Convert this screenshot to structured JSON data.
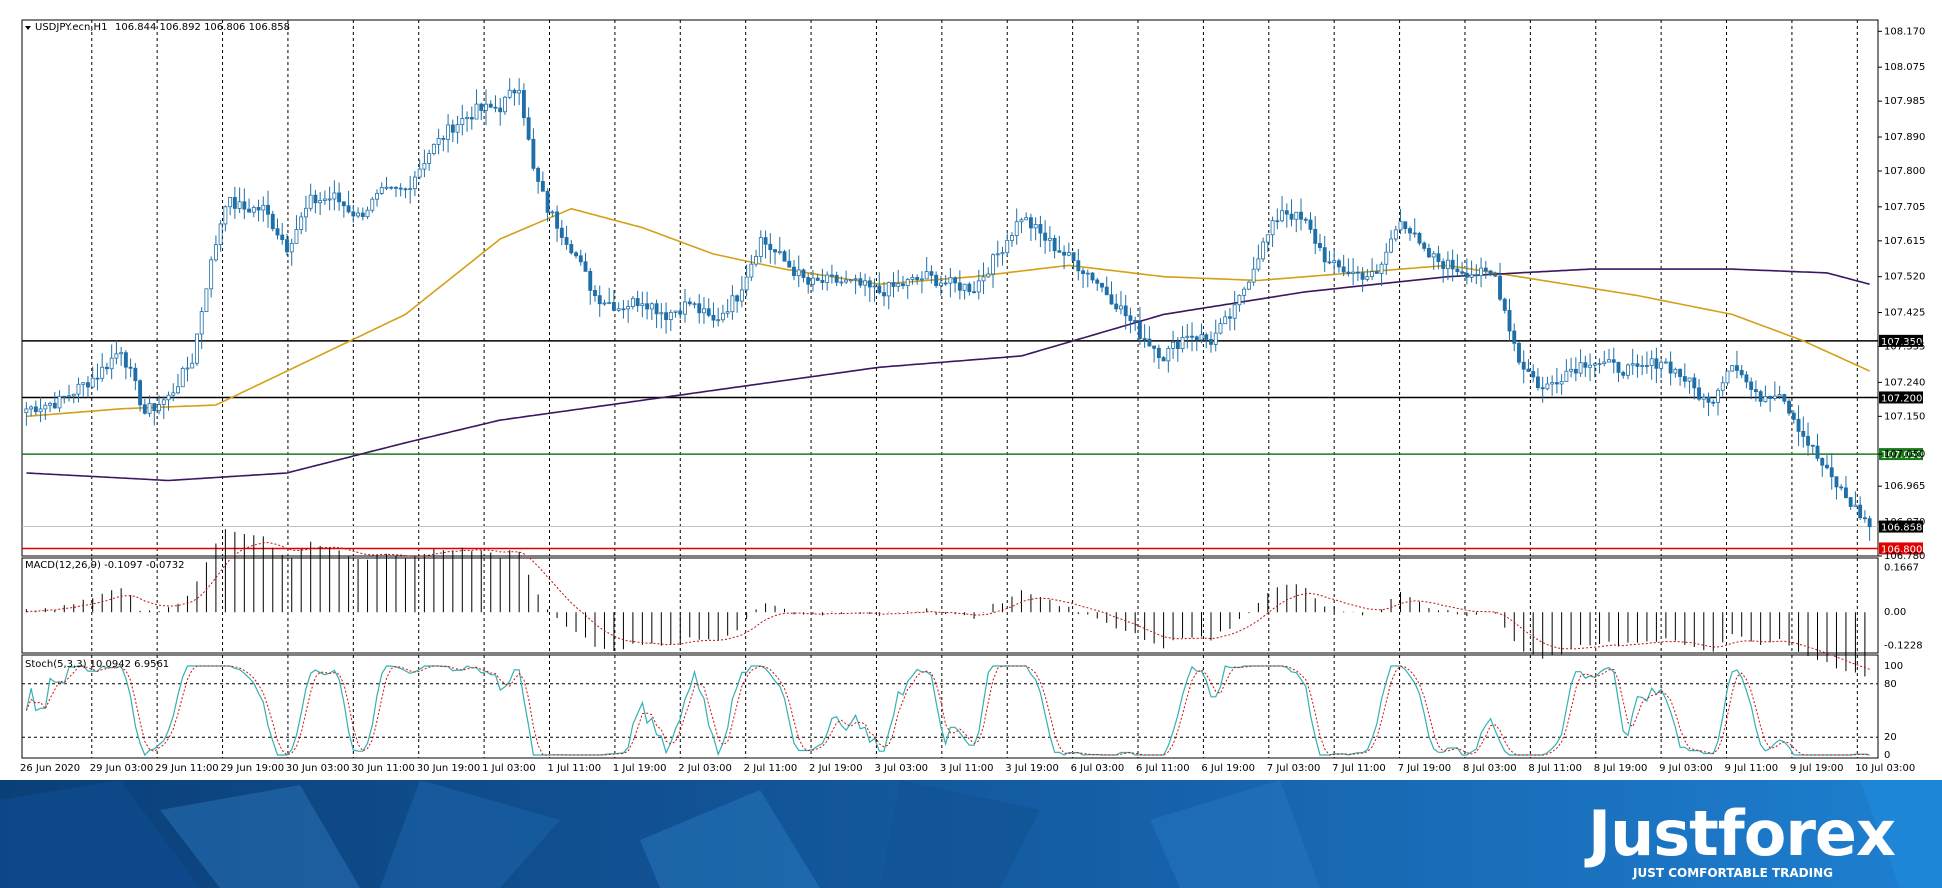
{
  "header": {
    "symbol": "USDJPY.ecn,H1",
    "ohlc": "106.844 106.892 106.806 106.858",
    "macd_label": "MACD(12,26,9) -0.1097 -0.0732",
    "stoch_label": "Stoch(5,3,3) 10.0942 6.9561"
  },
  "brand": {
    "name": "Justforex",
    "tagline": "JUST COMFORTABLE TRADING"
  },
  "colors": {
    "bull": "#ffffff",
    "bear": "#1f6fa8",
    "candle_outline": "#1f6fa8",
    "ma_fast": "#d4a017",
    "ma_slow": "#3c1761",
    "support_black": "#000000",
    "support_green": "#1b7a1b",
    "support_red": "#e00000",
    "stoch_main": "#35b0b0",
    "stoch_signal": "#d01010",
    "macd_signal": "#c01010",
    "banner_dark": "#0b3f78",
    "banner_light": "#1e7fd0"
  },
  "chart_data": {
    "type": "candlestick",
    "symbol": "USDJPY.ecn",
    "timeframe": "H1",
    "price_axis": {
      "min": 106.78,
      "max": 108.2,
      "ticks": [
        "108.170",
        "108.075",
        "107.985",
        "107.890",
        "107.800",
        "107.705",
        "107.615",
        "107.520",
        "107.425",
        "107.335",
        "107.240",
        "107.150",
        "107.050",
        "106.965",
        "106.870",
        "106.780"
      ]
    },
    "levels": [
      {
        "value": 107.35,
        "label": "107.350",
        "color": "#000000"
      },
      {
        "value": 107.2,
        "label": "107.200",
        "color": "#000000"
      },
      {
        "value": 107.05,
        "label": "107.050",
        "color": "#1b7a1b"
      },
      {
        "value": 106.8,
        "label": "106.800",
        "color": "#e00000"
      }
    ],
    "current_price": {
      "value": 106.858,
      "label": "106.858"
    },
    "time_labels": [
      "26 Jun 2020",
      "29 Jun 03:00",
      "29 Jun 11:00",
      "29 Jun 19:00",
      "30 Jun 03:00",
      "30 Jun 11:00",
      "30 Jun 19:00",
      "1 Jul 03:00",
      "1 Jul 11:00",
      "1 Jul 19:00",
      "2 Jul 03:00",
      "2 Jul 11:00",
      "2 Jul 19:00",
      "3 Jul 03:00",
      "3 Jul 11:00",
      "3 Jul 19:00",
      "6 Jul 03:00",
      "6 Jul 11:00",
      "6 Jul 19:00",
      "7 Jul 03:00",
      "7 Jul 11:00",
      "7 Jul 19:00",
      "8 Jul 03:00",
      "8 Jul 11:00",
      "8 Jul 19:00",
      "9 Jul 03:00",
      "9 Jul 11:00",
      "9 Jul 19:00",
      "10 Jul 03:00"
    ],
    "close_path": [
      [
        0,
        107.17
      ],
      [
        7,
        107.19
      ],
      [
        15,
        107.26
      ],
      [
        20,
        107.33
      ],
      [
        25,
        107.16
      ],
      [
        30,
        107.2
      ],
      [
        35,
        107.3
      ],
      [
        38,
        107.5
      ],
      [
        42,
        107.72
      ],
      [
        46,
        107.7
      ],
      [
        50,
        107.7
      ],
      [
        55,
        107.6
      ],
      [
        60,
        107.72
      ],
      [
        65,
        107.73
      ],
      [
        70,
        107.68
      ],
      [
        75,
        107.74
      ],
      [
        80,
        107.75
      ],
      [
        85,
        107.85
      ],
      [
        90,
        107.92
      ],
      [
        95,
        107.96
      ],
      [
        100,
        107.97
      ],
      [
        104,
        108.03
      ],
      [
        107,
        107.8
      ],
      [
        110,
        107.7
      ],
      [
        115,
        107.6
      ],
      [
        120,
        107.47
      ],
      [
        125,
        107.44
      ],
      [
        130,
        107.46
      ],
      [
        135,
        107.42
      ],
      [
        140,
        107.45
      ],
      [
        145,
        107.4
      ],
      [
        150,
        107.47
      ],
      [
        155,
        107.62
      ],
      [
        160,
        107.56
      ],
      [
        165,
        107.5
      ],
      [
        170,
        107.51
      ],
      [
        175,
        107.5
      ],
      [
        180,
        107.48
      ],
      [
        185,
        107.5
      ],
      [
        190,
        107.52
      ],
      [
        195,
        107.5
      ],
      [
        200,
        107.49
      ],
      [
        205,
        107.58
      ],
      [
        210,
        107.68
      ],
      [
        215,
        107.62
      ],
      [
        220,
        107.57
      ],
      [
        225,
        107.52
      ],
      [
        230,
        107.45
      ],
      [
        235,
        107.37
      ],
      [
        240,
        107.31
      ],
      [
        245,
        107.37
      ],
      [
        250,
        107.35
      ],
      [
        255,
        107.43
      ],
      [
        260,
        107.58
      ],
      [
        265,
        107.7
      ],
      [
        270,
        107.66
      ],
      [
        275,
        107.55
      ],
      [
        280,
        107.53
      ],
      [
        285,
        107.52
      ],
      [
        290,
        107.68
      ],
      [
        295,
        107.58
      ],
      [
        300,
        107.55
      ],
      [
        305,
        107.53
      ],
      [
        310,
        107.52
      ],
      [
        315,
        107.3
      ],
      [
        320,
        107.22
      ],
      [
        325,
        107.27
      ],
      [
        330,
        107.3
      ],
      [
        335,
        107.28
      ],
      [
        340,
        107.27
      ],
      [
        345,
        107.3
      ],
      [
        350,
        107.25
      ],
      [
        355,
        107.18
      ],
      [
        360,
        107.3
      ],
      [
        365,
        107.2
      ],
      [
        370,
        107.22
      ],
      [
        375,
        107.1
      ],
      [
        380,
        107.0
      ],
      [
        385,
        106.92
      ],
      [
        389,
        106.86
      ]
    ],
    "series": [
      {
        "name": "ma_fast",
        "color": "#d4a017",
        "points": [
          [
            0,
            107.15
          ],
          [
            20,
            107.17
          ],
          [
            40,
            107.18
          ],
          [
            60,
            107.3
          ],
          [
            80,
            107.42
          ],
          [
            100,
            107.62
          ],
          [
            115,
            107.7
          ],
          [
            130,
            107.65
          ],
          [
            145,
            107.58
          ],
          [
            160,
            107.54
          ],
          [
            180,
            107.5
          ],
          [
            200,
            107.52
          ],
          [
            220,
            107.55
          ],
          [
            240,
            107.52
          ],
          [
            260,
            107.51
          ],
          [
            280,
            107.53
          ],
          [
            300,
            107.55
          ],
          [
            320,
            107.51
          ],
          [
            340,
            107.47
          ],
          [
            360,
            107.42
          ],
          [
            375,
            107.35
          ],
          [
            389,
            107.27
          ]
        ]
      },
      {
        "name": "ma_slow",
        "color": "#3c1761",
        "points": [
          [
            0,
            107.0
          ],
          [
            30,
            106.98
          ],
          [
            55,
            107.0
          ],
          [
            80,
            107.08
          ],
          [
            100,
            107.14
          ],
          [
            140,
            107.21
          ],
          [
            180,
            107.28
          ],
          [
            210,
            107.31
          ],
          [
            240,
            107.42
          ],
          [
            270,
            107.48
          ],
          [
            300,
            107.52
          ],
          [
            330,
            107.54
          ],
          [
            360,
            107.54
          ],
          [
            380,
            107.53
          ],
          [
            389,
            107.5
          ]
        ]
      }
    ],
    "macd": {
      "label": "MACD(12,26,9) -0.1097 -0.0732",
      "ticks": [
        "0.1667",
        "0.00",
        "-0.1228"
      ],
      "min": -0.14,
      "max": 0.19
    },
    "stoch": {
      "label": "Stoch(5,3,3) 10.0942 6.9561",
      "ticks": [
        "100",
        "80",
        "20",
        "0"
      ],
      "min": 0,
      "max": 100,
      "overbought": 80,
      "oversold": 20
    }
  }
}
